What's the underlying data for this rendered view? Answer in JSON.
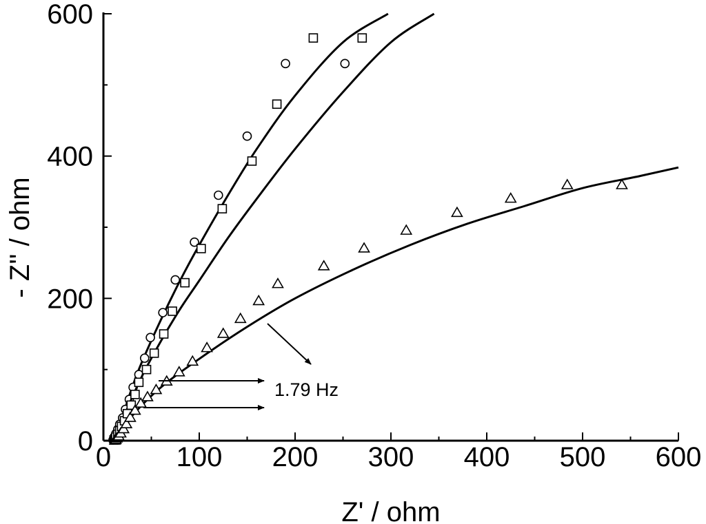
{
  "chart_data": {
    "type": "scatter",
    "title": "",
    "xlabel": "Z' / ohm",
    "ylabel": "- Z'' / ohm",
    "xlim": [
      0,
      600
    ],
    "ylim": [
      0,
      600
    ],
    "xticks": [
      0,
      100,
      200,
      300,
      400,
      500,
      600
    ],
    "yticks": [
      0,
      200,
      400,
      600
    ],
    "x_tick_labels": [
      "0",
      "100",
      "200",
      "300",
      "400",
      "500",
      "600"
    ],
    "y_tick_labels": [
      "0",
      "200",
      "400",
      "600"
    ],
    "grid": false,
    "series": [
      {
        "marker": "circle",
        "points": [
          [
            10,
            1
          ],
          [
            11,
            3
          ],
          [
            12,
            6
          ],
          [
            13,
            10
          ],
          [
            15,
            16
          ],
          [
            17,
            23
          ],
          [
            20,
            32
          ],
          [
            23,
            44
          ],
          [
            27,
            58
          ],
          [
            31,
            75
          ],
          [
            37,
            93
          ],
          [
            43,
            116
          ],
          [
            49,
            145
          ],
          [
            62,
            180
          ],
          [
            75,
            226
          ],
          [
            95,
            279
          ],
          [
            120,
            345
          ],
          [
            150,
            428
          ],
          [
            190,
            530
          ],
          [
            252,
            530
          ]
        ],
        "fit": [
          [
            10,
            0
          ],
          [
            20,
            35
          ],
          [
            30,
            75
          ],
          [
            40,
            110
          ],
          [
            60,
            170
          ],
          [
            80,
            225
          ],
          [
            100,
            275
          ],
          [
            130,
            345
          ],
          [
            160,
            410
          ],
          [
            200,
            485
          ],
          [
            250,
            560
          ],
          [
            297,
            600
          ]
        ]
      },
      {
        "marker": "square",
        "points": [
          [
            11,
            1
          ],
          [
            12,
            3
          ],
          [
            13,
            5
          ],
          [
            15,
            9
          ],
          [
            17,
            14
          ],
          [
            19,
            20
          ],
          [
            22,
            28
          ],
          [
            25,
            38
          ],
          [
            29,
            50
          ],
          [
            33,
            65
          ],
          [
            37,
            82
          ],
          [
            45,
            100
          ],
          [
            53,
            123
          ],
          [
            63,
            150
          ],
          [
            72,
            182
          ],
          [
            85,
            222
          ],
          [
            102,
            270
          ],
          [
            124,
            326
          ],
          [
            155,
            393
          ],
          [
            181,
            473
          ],
          [
            219,
            566
          ],
          [
            270,
            566
          ]
        ],
        "fit": [
          [
            11,
            0
          ],
          [
            20,
            30
          ],
          [
            40,
            90
          ],
          [
            60,
            140
          ],
          [
            80,
            185
          ],
          [
            100,
            225
          ],
          [
            130,
            285
          ],
          [
            160,
            340
          ],
          [
            200,
            410
          ],
          [
            250,
            490
          ],
          [
            300,
            560
          ],
          [
            345,
            600
          ]
        ]
      },
      {
        "marker": "triangle",
        "points": [
          [
            12,
            1
          ],
          [
            13,
            2
          ],
          [
            14,
            4
          ],
          [
            16,
            7
          ],
          [
            18,
            11
          ],
          [
            21,
            17
          ],
          [
            24,
            24
          ],
          [
            28,
            33
          ],
          [
            33,
            43
          ],
          [
            39,
            53
          ],
          [
            46,
            62
          ],
          [
            55,
            72
          ],
          [
            66,
            84
          ],
          [
            79,
            97
          ],
          [
            93,
            112
          ],
          [
            108,
            131
          ],
          [
            125,
            151
          ],
          [
            143,
            172
          ],
          [
            162,
            197
          ],
          [
            182,
            221
          ],
          [
            230,
            246
          ],
          [
            272,
            271
          ],
          [
            316,
            296
          ],
          [
            369,
            321
          ],
          [
            425,
            341
          ],
          [
            484,
            360
          ],
          [
            541,
            360
          ]
        ],
        "fit": [
          [
            12,
            0
          ],
          [
            30,
            35
          ],
          [
            60,
            75
          ],
          [
            100,
            115
          ],
          [
            150,
            160
          ],
          [
            200,
            200
          ],
          [
            260,
            240
          ],
          [
            320,
            275
          ],
          [
            380,
            305
          ],
          [
            440,
            330
          ],
          [
            500,
            355
          ],
          [
            560,
            372
          ],
          [
            600,
            384
          ]
        ]
      }
    ],
    "annotations": [
      {
        "text": "1.79 Hz"
      }
    ]
  }
}
